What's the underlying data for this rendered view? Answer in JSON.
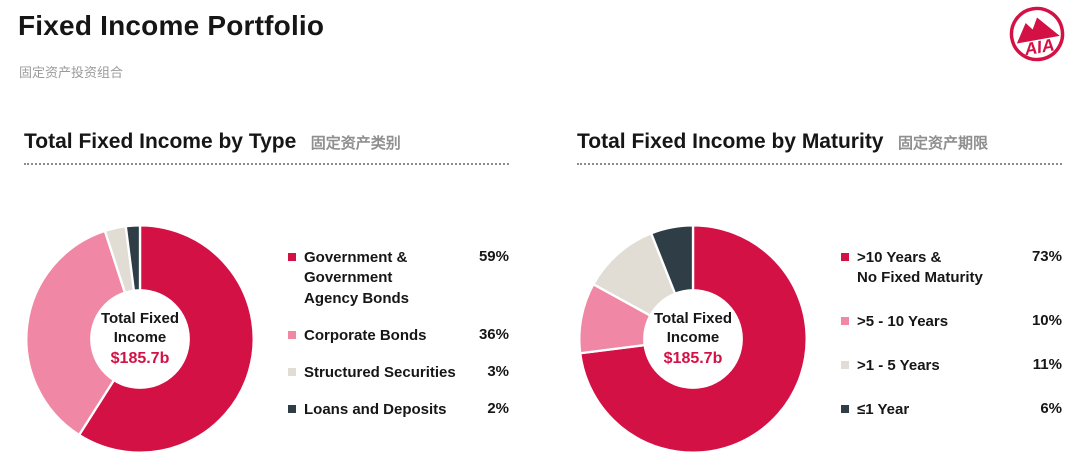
{
  "page": {
    "title": "Fixed Income Portfolio",
    "subtitle_cn": "固定资产投资组合"
  },
  "logo": {
    "text": "AIA",
    "color": "#D31145"
  },
  "brand_color": "#D31145",
  "chart_data": [
    {
      "type": "pie",
      "donut": true,
      "title": "Total Fixed Income by Type",
      "title_cn": "固定资产类别",
      "center_label": "Total Fixed Income",
      "center_value": "$185.7b",
      "categories": [
        "Government & Government Agency Bonds",
        "Corporate Bonds",
        "Structured Securities",
        "Loans and Deposits"
      ],
      "legend_labels": [
        "Government & Government\nAgency Bonds",
        "Corporate Bonds",
        "Structured Securities",
        "Loans and Deposits"
      ],
      "values": [
        59,
        36,
        3,
        2
      ],
      "unit": "%",
      "colors": [
        "#D31145",
        "#EF87A5",
        "#E1DDD5",
        "#2F3D47"
      ],
      "start_angle": -90,
      "direction": "clockwise",
      "legend_position": "right"
    },
    {
      "type": "pie",
      "donut": true,
      "title": "Total Fixed Income by Maturity",
      "title_cn": "固定资产期限",
      "center_label": "Total Fixed Income",
      "center_value": "$185.7b",
      "categories": [
        ">10 Years & No Fixed Maturity",
        ">5 - 10 Years",
        ">1 - 5 Years",
        "≤1 Year"
      ],
      "legend_labels": [
        ">10 Years &\nNo Fixed Maturity",
        ">5 - 10 Years",
        ">1 - 5 Years",
        "≤1 Year"
      ],
      "values": [
        73,
        10,
        11,
        6
      ],
      "unit": "%",
      "colors": [
        "#D31145",
        "#EF87A5",
        "#E1DDD5",
        "#2F3D47"
      ],
      "start_angle": -90,
      "direction": "clockwise",
      "legend_position": "right"
    }
  ]
}
